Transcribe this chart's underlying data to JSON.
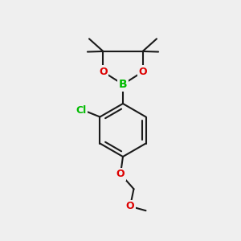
{
  "bg_color": "#efefef",
  "bond_color": "#1a1a1a",
  "bond_width": 1.5,
  "atom_colors": {
    "B": "#00bb00",
    "O": "#dd0000",
    "Cl": "#00bb00",
    "C": "#1a1a1a"
  },
  "fig_width": 3.0,
  "fig_height": 3.0,
  "dpi": 100,
  "xlim": [
    0,
    10
  ],
  "ylim": [
    0,
    10
  ]
}
